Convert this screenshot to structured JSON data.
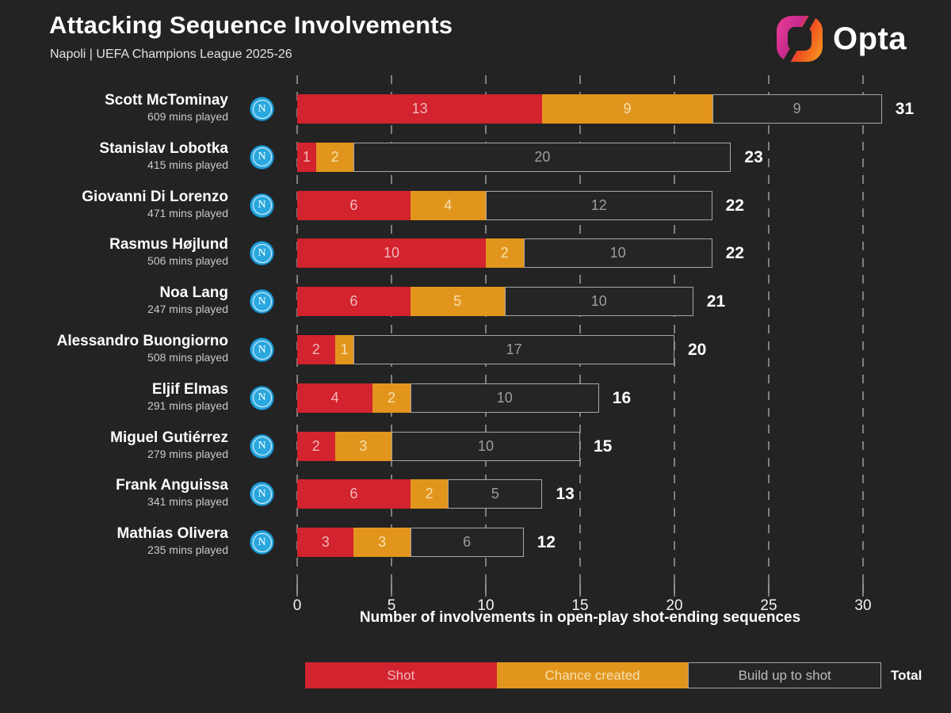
{
  "header": {
    "title": "Attacking Sequence Involvements",
    "subtitle": "Napoli | UEFA Champions League 2025-26",
    "brand": "Opta"
  },
  "badge": {
    "letter": "N"
  },
  "axis": {
    "ticks": [
      0,
      5,
      10,
      15,
      20,
      25,
      30
    ],
    "max": 30,
    "label": "Number of involvements in open-play shot-ending sequences"
  },
  "legend": {
    "items": [
      {
        "label": "Shot",
        "color": "#d2232f",
        "text_color": "#f1b6ba"
      },
      {
        "label": "Chance created",
        "color": "#e2951d",
        "text_color": "#f7e0ae"
      },
      {
        "label": "Build up to shot",
        "color": "#252525",
        "text_color": "#bdbdbd"
      }
    ],
    "total_label": "Total"
  },
  "colors": {
    "background": "#232323",
    "shot": "#d2232f",
    "chance_created": "#e2951d",
    "build_up": "#252525",
    "build_up_border": "rgba(200,200,200,0.8)",
    "badge_blue": "#2aa7df"
  },
  "chart_data": {
    "type": "bar",
    "stacked": true,
    "orientation": "horizontal",
    "title": "Attacking Sequence Involvements",
    "xlabel": "Number of involvements in open-play shot-ending sequences",
    "xlim": [
      0,
      30
    ],
    "grid": "dashed-vertical",
    "legend_position": "bottom",
    "series_names": [
      "Shot",
      "Chance created",
      "Build up to shot"
    ],
    "players": [
      {
        "name": "Scott McTominay",
        "mins": "609 mins played",
        "shot": 13,
        "chance": 9,
        "buildup": 9,
        "total": 31
      },
      {
        "name": "Stanislav Lobotka",
        "mins": "415 mins played",
        "shot": 1,
        "chance": 2,
        "buildup": 20,
        "total": 23
      },
      {
        "name": "Giovanni Di Lorenzo",
        "mins": "471 mins played",
        "shot": 6,
        "chance": 4,
        "buildup": 12,
        "total": 22
      },
      {
        "name": "Rasmus Højlund",
        "mins": "506 mins played",
        "shot": 10,
        "chance": 2,
        "buildup": 10,
        "total": 22
      },
      {
        "name": "Noa Lang",
        "mins": "247 mins played",
        "shot": 6,
        "chance": 5,
        "buildup": 10,
        "total": 21
      },
      {
        "name": "Alessandro Buongiorno",
        "mins": "508 mins played",
        "shot": 2,
        "chance": 1,
        "buildup": 17,
        "total": 20
      },
      {
        "name": "Eljif Elmas",
        "mins": "291 mins played",
        "shot": 4,
        "chance": 2,
        "buildup": 10,
        "total": 16
      },
      {
        "name": "Miguel Gutiérrez",
        "mins": "279 mins played",
        "shot": 2,
        "chance": 3,
        "buildup": 10,
        "total": 15
      },
      {
        "name": "Frank Anguissa",
        "mins": "341 mins played",
        "shot": 6,
        "chance": 2,
        "buildup": 5,
        "total": 13
      },
      {
        "name": "Mathías Olivera",
        "mins": "235 mins played",
        "shot": 3,
        "chance": 3,
        "buildup": 6,
        "total": 12
      }
    ]
  }
}
